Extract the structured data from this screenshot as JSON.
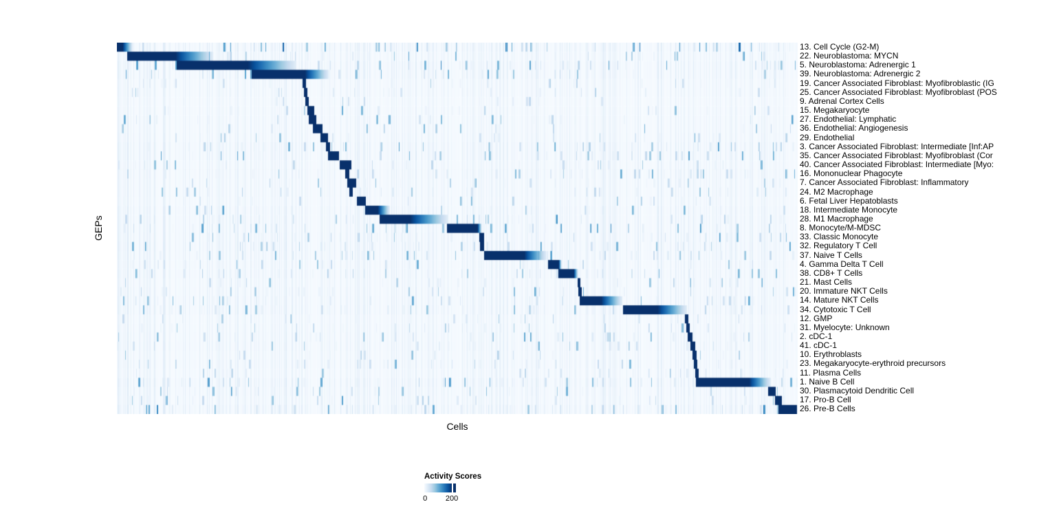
{
  "figure": {
    "x_axis_label": "Cells",
    "y_axis_label": "GEPs",
    "legend": {
      "title": "Activity Scores",
      "min_label": "0",
      "max_label": "200"
    }
  },
  "chart_data": {
    "type": "heatmap",
    "title": "",
    "xlabel": "Cells",
    "ylabel": "GEPs",
    "grid": false,
    "legend_position": "bottom-left",
    "colorbar": {
      "title": "Activity Scores",
      "ticks": [
        0,
        200
      ],
      "min_label": "0",
      "max_label": "200",
      "colormap": "Blues",
      "colormap_stops": [
        "#f7fbff",
        "#deebf7",
        "#c6dbef",
        "#9ecae1",
        "#6baed6",
        "#4292c6",
        "#2171b5",
        "#08519c",
        "#08306b"
      ]
    },
    "description": "Single-cell GEP activity-score heatmap. Columns are cells ordered by their dominant gene expression program (GEP); rows are 41 GEPs. Dark diagonal blocks (activity near/above 200) mark the cells assigned to each GEP; block_start/block_end/fade_end give each block's horizontal extent as a fraction of the x axis (0-1). Background shows sparse light-blue vertical striping noise parameterized per row.",
    "rows": [
      {
        "label": "13. Cell Cycle (G2-M)",
        "block_start": 0.0,
        "block_end": 0.008,
        "fade_end": 0.022,
        "noise_density": 0.55,
        "noise_strength": 0.7
      },
      {
        "label": "22. Neuroblastoma: MYCN",
        "block_start": 0.015,
        "block_end": 0.086,
        "fade_end": 0.14,
        "noise_density": 0.4,
        "noise_strength": 0.5
      },
      {
        "label": "5. Neuroblastoma: Adrenergic 1",
        "block_start": 0.088,
        "block_end": 0.192,
        "fade_end": 0.262,
        "noise_density": 0.5,
        "noise_strength": 0.55
      },
      {
        "label": "39. Neuroblastoma: Adrenergic 2",
        "block_start": 0.198,
        "block_end": 0.276,
        "fade_end": 0.31,
        "noise_density": 0.5,
        "noise_strength": 0.6
      },
      {
        "label": "19. Cancer Associated Fibroblast: Myofibroblastic (IG",
        "block_start": 0.273,
        "block_end": 0.277,
        "fade_end": 0.277,
        "noise_density": 0.3,
        "noise_strength": 0.35
      },
      {
        "label": "25. Cancer Associated Fibroblast: Myofibroblast (POS",
        "block_start": 0.275,
        "block_end": 0.279,
        "fade_end": 0.279,
        "noise_density": 0.3,
        "noise_strength": 0.35
      },
      {
        "label": "9. Adrenal Cortex Cells",
        "block_start": 0.277,
        "block_end": 0.281,
        "fade_end": 0.281,
        "noise_density": 0.2,
        "noise_strength": 0.3
      },
      {
        "label": "15. Megakaryocyte",
        "block_start": 0.28,
        "block_end": 0.289,
        "fade_end": 0.289,
        "noise_density": 0.25,
        "noise_strength": 0.45
      },
      {
        "label": "27. Endothelial: Lymphatic",
        "block_start": 0.282,
        "block_end": 0.292,
        "fade_end": 0.292,
        "noise_density": 0.3,
        "noise_strength": 0.5
      },
      {
        "label": "36. Endothelial: Angiogenesis",
        "block_start": 0.288,
        "block_end": 0.301,
        "fade_end": 0.301,
        "noise_density": 0.3,
        "noise_strength": 0.45
      },
      {
        "label": "29. Endothelial",
        "block_start": 0.299,
        "block_end": 0.309,
        "fade_end": 0.309,
        "noise_density": 0.35,
        "noise_strength": 0.5
      },
      {
        "label": "3. Cancer Associated Fibroblast: Intermediate [Inf:AP",
        "block_start": 0.307,
        "block_end": 0.312,
        "fade_end": 0.312,
        "noise_density": 0.5,
        "noise_strength": 0.5
      },
      {
        "label": "35. Cancer Associated Fibroblast: Myofibroblast (Cor",
        "block_start": 0.31,
        "block_end": 0.325,
        "fade_end": 0.325,
        "noise_density": 0.5,
        "noise_strength": 0.5
      },
      {
        "label": "40. Cancer Associated Fibroblast: Intermediate [Myo:",
        "block_start": 0.327,
        "block_end": 0.343,
        "fade_end": 0.343,
        "noise_density": 0.35,
        "noise_strength": 0.45
      },
      {
        "label": "16. Mononuclear Phagocyte",
        "block_start": 0.335,
        "block_end": 0.34,
        "fade_end": 0.34,
        "noise_density": 0.4,
        "noise_strength": 0.45
      },
      {
        "label": "7. Cancer Associated Fibroblast: Inflammatory",
        "block_start": 0.338,
        "block_end": 0.35,
        "fade_end": 0.35,
        "noise_density": 0.35,
        "noise_strength": 0.4
      },
      {
        "label": "24. M2 Macrophage",
        "block_start": 0.341,
        "block_end": 0.345,
        "fade_end": 0.345,
        "noise_density": 0.35,
        "noise_strength": 0.4
      },
      {
        "label": "6. Fetal Liver Hepatoblasts",
        "block_start": 0.353,
        "block_end": 0.365,
        "fade_end": 0.365,
        "noise_density": 0.3,
        "noise_strength": 0.4
      },
      {
        "label": "18. Intermediate Monocyte",
        "block_start": 0.365,
        "block_end": 0.383,
        "fade_end": 0.4,
        "noise_density": 0.45,
        "noise_strength": 0.5
      },
      {
        "label": "28. M1 Macrophage",
        "block_start": 0.386,
        "block_end": 0.43,
        "fade_end": 0.485,
        "noise_density": 0.45,
        "noise_strength": 0.5
      },
      {
        "label": "8. Monocyte/M-MDSC",
        "block_start": 0.485,
        "block_end": 0.529,
        "fade_end": 0.535,
        "noise_density": 0.45,
        "noise_strength": 0.55
      },
      {
        "label": "33. Classic Monocyte",
        "block_start": 0.532,
        "block_end": 0.538,
        "fade_end": 0.538,
        "noise_density": 0.5,
        "noise_strength": 0.5
      },
      {
        "label": "32. Regulatory T Cell",
        "block_start": 0.533,
        "block_end": 0.538,
        "fade_end": 0.538,
        "noise_density": 0.55,
        "noise_strength": 0.5
      },
      {
        "label": "37. Naive T Cells",
        "block_start": 0.539,
        "block_end": 0.598,
        "fade_end": 0.63,
        "noise_density": 0.5,
        "noise_strength": 0.5
      },
      {
        "label": "4. Gamma Delta T Cell",
        "block_start": 0.633,
        "block_end": 0.648,
        "fade_end": 0.653,
        "noise_density": 0.4,
        "noise_strength": 0.45
      },
      {
        "label": "38. CD8+ T Cells",
        "block_start": 0.648,
        "block_end": 0.671,
        "fade_end": 0.677,
        "noise_density": 0.45,
        "noise_strength": 0.5
      },
      {
        "label": "21. Mast Cells",
        "block_start": 0.677,
        "block_end": 0.68,
        "fade_end": 0.68,
        "noise_density": 0.35,
        "noise_strength": 0.4
      },
      {
        "label": "20. Immature NKT Cells",
        "block_start": 0.678,
        "block_end": 0.682,
        "fade_end": 0.682,
        "noise_density": 0.4,
        "noise_strength": 0.45
      },
      {
        "label": "14. Mature NKT Cells",
        "block_start": 0.68,
        "block_end": 0.711,
        "fade_end": 0.741,
        "noise_density": 0.45,
        "noise_strength": 0.5
      },
      {
        "label": "34. Cytotoxic T Cell",
        "block_start": 0.743,
        "block_end": 0.794,
        "fade_end": 0.836,
        "noise_density": 0.5,
        "noise_strength": 0.5
      },
      {
        "label": "12. GMP",
        "block_start": 0.834,
        "block_end": 0.838,
        "fade_end": 0.838,
        "noise_density": 0.3,
        "noise_strength": 0.35
      },
      {
        "label": "31. Myelocyte: Unknown",
        "block_start": 0.836,
        "block_end": 0.84,
        "fade_end": 0.84,
        "noise_density": 0.35,
        "noise_strength": 0.4
      },
      {
        "label": "2. cDC-1",
        "block_start": 0.838,
        "block_end": 0.844,
        "fade_end": 0.844,
        "noise_density": 0.4,
        "noise_strength": 0.45
      },
      {
        "label": "41. cDC-1",
        "block_start": 0.842,
        "block_end": 0.848,
        "fade_end": 0.848,
        "noise_density": 0.45,
        "noise_strength": 0.5
      },
      {
        "label": "10. Erythroblasts",
        "block_start": 0.845,
        "block_end": 0.85,
        "fade_end": 0.85,
        "noise_density": 0.35,
        "noise_strength": 0.4
      },
      {
        "label": "23. Megakaryocyte-erythroid precursors",
        "block_start": 0.847,
        "block_end": 0.852,
        "fade_end": 0.852,
        "noise_density": 0.4,
        "noise_strength": 0.45
      },
      {
        "label": "11. Plasma Cells",
        "block_start": 0.849,
        "block_end": 0.854,
        "fade_end": 0.854,
        "noise_density": 0.35,
        "noise_strength": 0.4
      },
      {
        "label": "1. Naive B Cell",
        "block_start": 0.851,
        "block_end": 0.928,
        "fade_end": 0.96,
        "noise_density": 0.55,
        "noise_strength": 0.55
      },
      {
        "label": "30. Plasmacytoid Dendritic Cell",
        "block_start": 0.957,
        "block_end": 0.967,
        "fade_end": 0.967,
        "noise_density": 0.45,
        "noise_strength": 0.5
      },
      {
        "label": "17. Pro-B Cell",
        "block_start": 0.967,
        "block_end": 0.976,
        "fade_end": 0.976,
        "noise_density": 0.4,
        "noise_strength": 0.5
      },
      {
        "label": "26. Pre-B Cells",
        "block_start": 0.972,
        "block_end": 0.998,
        "fade_end": 0.998,
        "noise_density": 0.6,
        "noise_strength": 0.6
      }
    ]
  }
}
